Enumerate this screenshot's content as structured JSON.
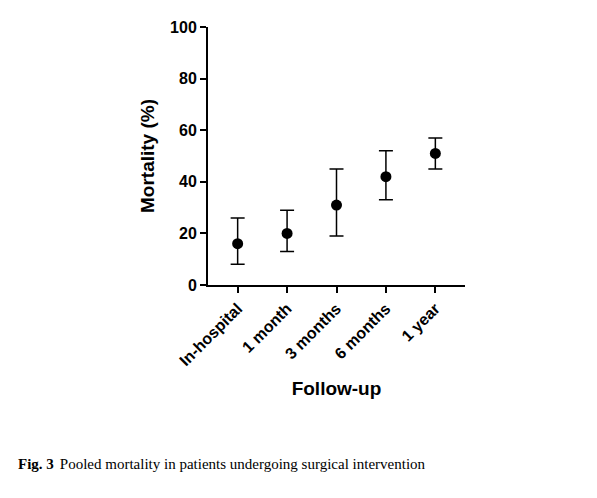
{
  "chart_data": {
    "type": "scatter",
    "caption_label": "Fig. 3",
    "caption": "Pooled mortality in patients undergoing surgical intervention",
    "x_label": "Follow-up",
    "y_label": "Mortality (%)",
    "categories": [
      "In-hospital",
      "1 month",
      "3 months",
      "6 months",
      "1 year"
    ],
    "values": [
      16,
      20,
      31,
      42,
      51
    ],
    "ci_lower": [
      8,
      13,
      19,
      33,
      45
    ],
    "ci_upper": [
      26,
      29,
      45,
      52,
      57
    ],
    "color": "#000000",
    "marker": "circle",
    "ylim": [
      0,
      100
    ],
    "yticks": [
      0,
      20,
      40,
      60,
      80,
      100
    ],
    "grid": false
  }
}
